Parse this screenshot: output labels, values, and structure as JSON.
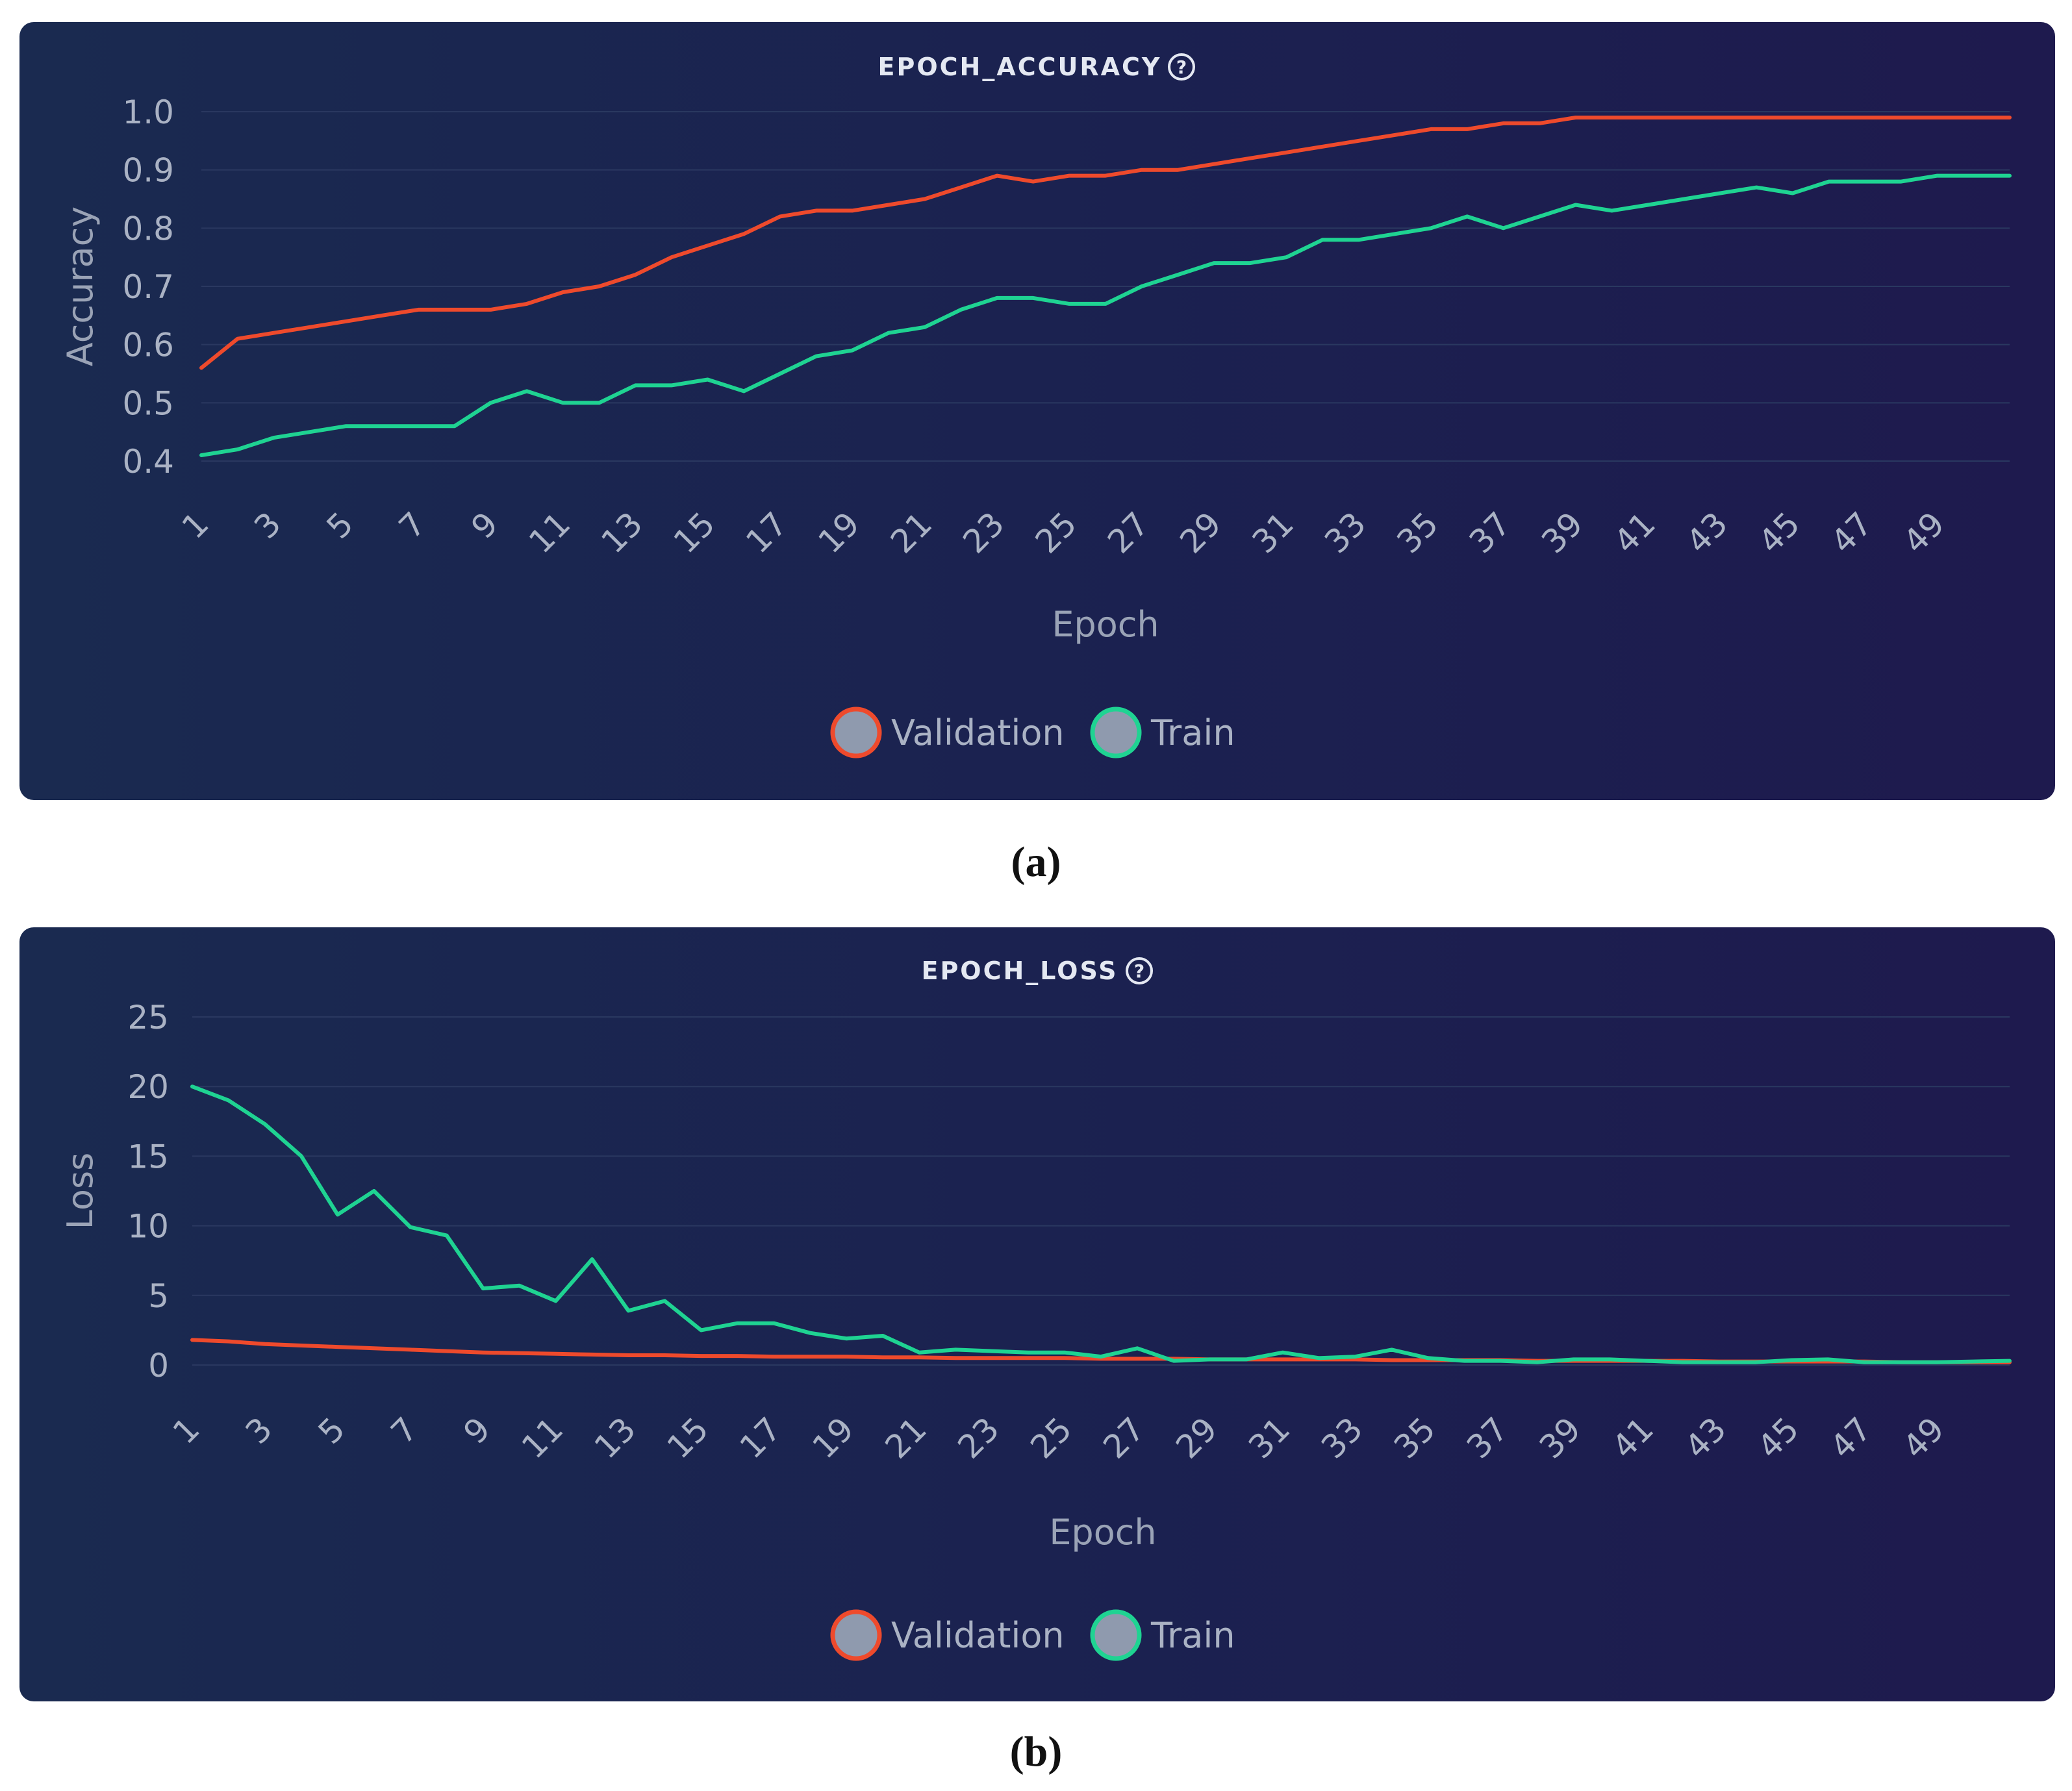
{
  "panels": [
    {
      "title": "EPOCH_ACCURACY",
      "caption": "(a)",
      "help_icon": "question-circle-icon",
      "chart_data": {
        "type": "line",
        "x": [
          1,
          2,
          3,
          4,
          5,
          6,
          7,
          8,
          9,
          10,
          11,
          12,
          13,
          14,
          15,
          16,
          17,
          18,
          19,
          20,
          21,
          22,
          23,
          24,
          25,
          26,
          27,
          28,
          29,
          30,
          31,
          32,
          33,
          34,
          35,
          36,
          37,
          38,
          39,
          40,
          41,
          42,
          43,
          44,
          45,
          46,
          47,
          48,
          49,
          50,
          51
        ],
        "xticks": [
          "1",
          "3",
          "5",
          "7",
          "9",
          "11",
          "13",
          "15",
          "17",
          "19",
          "21",
          "23",
          "25",
          "27",
          "29",
          "31",
          "33",
          "35",
          "37",
          "39",
          "41",
          "43",
          "45",
          "47",
          "49"
        ],
        "xlabel": "Epoch",
        "ylabel": "Accuracy",
        "ylim": [
          0.4,
          1.0
        ],
        "yticks": [
          "1.0",
          "0.9",
          "0.8",
          "0.7",
          "0.6",
          "0.5",
          "0.4"
        ],
        "grid": true,
        "legend_position": "bottom-center",
        "series": [
          {
            "name": "Validation",
            "color": "#ee4a2c",
            "values": [
              0.56,
              0.61,
              0.62,
              0.63,
              0.64,
              0.65,
              0.66,
              0.66,
              0.66,
              0.67,
              0.69,
              0.7,
              0.72,
              0.75,
              0.77,
              0.79,
              0.82,
              0.83,
              0.83,
              0.84,
              0.85,
              0.87,
              0.89,
              0.88,
              0.89,
              0.89,
              0.9,
              0.9,
              0.91,
              0.92,
              0.93,
              0.94,
              0.95,
              0.96,
              0.97,
              0.97,
              0.98,
              0.98,
              0.99,
              0.99,
              0.99,
              0.99,
              0.99,
              0.99,
              0.99,
              0.99,
              0.99,
              0.99,
              0.99,
              0.99,
              0.99
            ]
          },
          {
            "name": "Train",
            "color": "#1fd392",
            "values": [
              0.41,
              0.42,
              0.44,
              0.45,
              0.46,
              0.46,
              0.46,
              0.46,
              0.5,
              0.52,
              0.5,
              0.5,
              0.53,
              0.53,
              0.54,
              0.52,
              0.55,
              0.58,
              0.59,
              0.62,
              0.63,
              0.66,
              0.68,
              0.68,
              0.67,
              0.67,
              0.7,
              0.72,
              0.74,
              0.74,
              0.75,
              0.78,
              0.78,
              0.79,
              0.8,
              0.82,
              0.8,
              0.82,
              0.84,
              0.83,
              0.84,
              0.85,
              0.86,
              0.87,
              0.86,
              0.88,
              0.88,
              0.88,
              0.89,
              0.89,
              0.89
            ]
          }
        ]
      }
    },
    {
      "title": "EPOCH_LOSS",
      "caption": "(b)",
      "help_icon": "question-circle-icon",
      "chart_data": {
        "type": "line",
        "x": [
          1,
          2,
          3,
          4,
          5,
          6,
          7,
          8,
          9,
          10,
          11,
          12,
          13,
          14,
          15,
          16,
          17,
          18,
          19,
          20,
          21,
          22,
          23,
          24,
          25,
          26,
          27,
          28,
          29,
          30,
          31,
          32,
          33,
          34,
          35,
          36,
          37,
          38,
          39,
          40,
          41,
          42,
          43,
          44,
          45,
          46,
          47,
          48,
          49,
          50,
          51
        ],
        "xticks": [
          "1",
          "3",
          "5",
          "7",
          "9",
          "11",
          "13",
          "15",
          "17",
          "19",
          "21",
          "23",
          "25",
          "27",
          "29",
          "31",
          "33",
          "35",
          "37",
          "39",
          "41",
          "43",
          "45",
          "47",
          "49"
        ],
        "xlabel": "Epoch",
        "ylabel": "Loss",
        "ylim": [
          0,
          25
        ],
        "yticks": [
          "25",
          "20",
          "15",
          "10",
          "5",
          "0"
        ],
        "grid": true,
        "legend_position": "bottom-center",
        "series": [
          {
            "name": "Validation",
            "color": "#ee4a2c",
            "values": [
              1.8,
              1.7,
              1.5,
              1.4,
              1.3,
              1.2,
              1.1,
              1.0,
              0.9,
              0.85,
              0.8,
              0.75,
              0.7,
              0.7,
              0.65,
              0.65,
              0.6,
              0.6,
              0.6,
              0.55,
              0.55,
              0.5,
              0.5,
              0.5,
              0.5,
              0.45,
              0.45,
              0.45,
              0.4,
              0.4,
              0.4,
              0.4,
              0.4,
              0.35,
              0.35,
              0.35,
              0.35,
              0.3,
              0.3,
              0.3,
              0.3,
              0.3,
              0.25,
              0.25,
              0.25,
              0.25,
              0.25,
              0.2,
              0.2,
              0.2,
              0.2
            ]
          },
          {
            "name": "Train",
            "color": "#1fd392",
            "values": [
              20.0,
              19.0,
              17.3,
              15.0,
              10.8,
              12.5,
              9.9,
              9.3,
              5.5,
              5.7,
              4.6,
              7.6,
              3.9,
              4.6,
              2.5,
              3.0,
              3.0,
              2.3,
              1.9,
              2.1,
              0.9,
              1.1,
              1.0,
              0.9,
              0.9,
              0.6,
              1.2,
              0.3,
              0.4,
              0.4,
              0.9,
              0.5,
              0.6,
              1.1,
              0.5,
              0.3,
              0.3,
              0.2,
              0.4,
              0.4,
              0.3,
              0.2,
              0.2,
              0.2,
              0.35,
              0.4,
              0.2,
              0.2,
              0.2,
              0.25,
              0.3
            ]
          }
        ]
      }
    }
  ]
}
